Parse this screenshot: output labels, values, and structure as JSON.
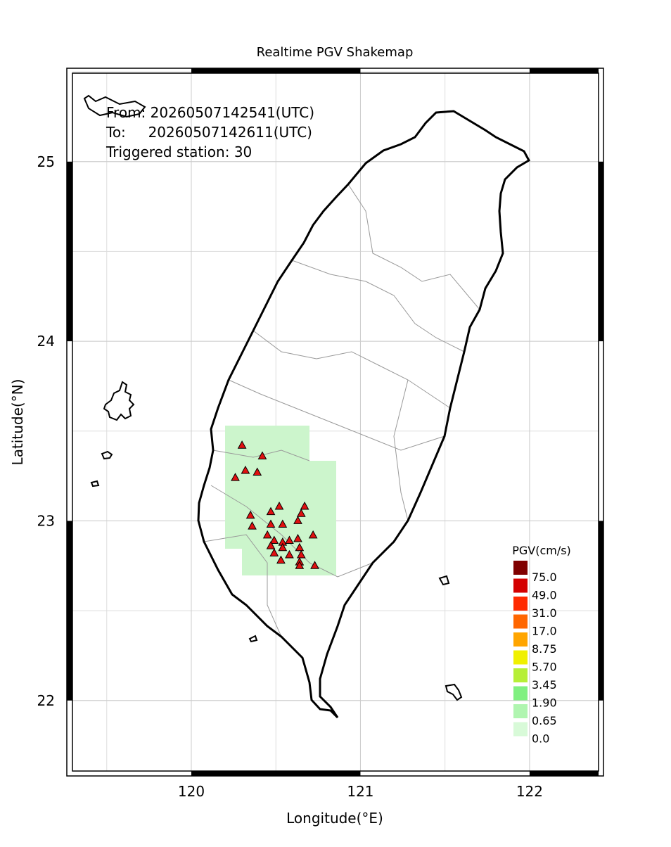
{
  "chart_data": {
    "type": "map",
    "title": "Realtime PGV Shakemap",
    "info": [
      "From: 20260507142541(UTC)",
      "To:     20260507142611(UTC)",
      "Triggered station: 30"
    ],
    "x_label": "Longitude(°E)",
    "y_label": "Latitude(°N)",
    "xlim": [
      119.264,
      122.437
    ],
    "ylim": [
      21.58,
      25.52
    ],
    "xticks": [
      120,
      121,
      122
    ],
    "yticks": [
      22,
      23,
      24,
      25
    ],
    "grid_step": 0.5,
    "stations": {
      "color": "#e01010",
      "lon": [
        120.3,
        120.42,
        120.32,
        120.39,
        120.26,
        120.52,
        120.67,
        120.47,
        120.35,
        120.65,
        120.63,
        120.36,
        120.47,
        120.54,
        120.45,
        120.72,
        120.49,
        120.54,
        120.58,
        120.63,
        120.47,
        120.54,
        120.64,
        120.49,
        120.58,
        120.53,
        120.64,
        120.64,
        120.73,
        120.65
      ],
      "lat": [
        23.42,
        23.36,
        23.28,
        23.27,
        23.24,
        23.08,
        23.08,
        23.05,
        23.03,
        23.04,
        23.0,
        22.97,
        22.98,
        22.98,
        22.92,
        22.92,
        22.89,
        22.88,
        22.89,
        22.9,
        22.86,
        22.85,
        22.85,
        22.82,
        22.81,
        22.78,
        22.77,
        22.75,
        22.75,
        22.81
      ]
    },
    "legend": {
      "title": "PGV(cm/s)",
      "labels": [
        "75.0",
        "49.0",
        "31.0",
        "17.0",
        "8.75",
        "5.70",
        "3.45",
        "1.90",
        "0.65",
        "0.0"
      ],
      "colors": [
        "#800000",
        "#d40000",
        "#ff2a00",
        "#ff6600",
        "#ffa500",
        "#f0f000",
        "#b6ef36",
        "#80f080",
        "#b0f5b0",
        "#d8fad8"
      ]
    }
  }
}
